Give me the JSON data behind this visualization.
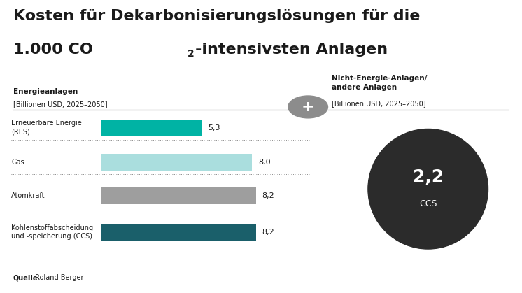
{
  "title_line1": "Kosten für Dekarbonisierungslösungen für die",
  "title_line2_part1": "1.000 CO",
  "title_line2_sub": "2",
  "title_line2_part2": "-intensivsten Anlagen",
  "left_label_bold": "Energieanlagen",
  "left_label_sub": "[Billionen USD, 2025–2050]",
  "right_label_bold": "Nicht-Energie-Anlagen/\nandere Anlagen",
  "right_label_sub": "[Billionen USD, 2025–2050]",
  "categories": [
    "Erneuerbare Energie\n(RES)",
    "Gas",
    "Atomkraft",
    "Kohlenstoffabscheidung\nund -speicherung (CCS)"
  ],
  "values": [
    5.3,
    8.0,
    8.2,
    8.2
  ],
  "value_labels": [
    "5,3",
    "8,0",
    "8,2",
    "8,2"
  ],
  "bar_colors": [
    "#00b3a4",
    "#aadede",
    "#9e9e9e",
    "#1a5f6a"
  ],
  "circle_value": "2,2",
  "circle_label": "CCS",
  "circle_color": "#2b2b2b",
  "plus_circle_color": "#8c8c8c",
  "bg_color": "#ffffff",
  "source_bold": "Quelle",
  "source_normal": " Roland Berger",
  "max_val": 10.0
}
